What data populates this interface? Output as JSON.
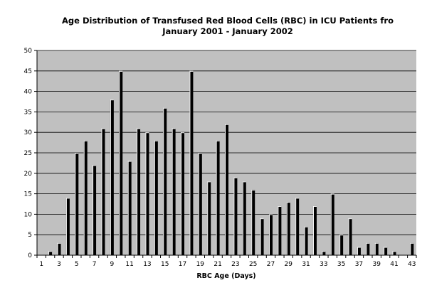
{
  "chart_data": {
    "type": "bar",
    "title_line1": "Age Distribution of Transfused Red Blood Cells (RBC) in ICU Patients fro",
    "title_line2": "January 2001 - January 2002",
    "xlabel": "RBC Age (Days)",
    "ylabel": "",
    "ylim": [
      0,
      50
    ],
    "y_ticks": [
      0,
      5,
      10,
      15,
      20,
      25,
      30,
      35,
      40,
      45,
      50
    ],
    "x_tick_labels": [
      1,
      3,
      5,
      7,
      9,
      11,
      13,
      15,
      17,
      19,
      21,
      23,
      25,
      27,
      29,
      31,
      33,
      35,
      37,
      39,
      41,
      43
    ],
    "categories": [
      1,
      2,
      3,
      4,
      5,
      6,
      7,
      8,
      9,
      10,
      11,
      12,
      13,
      14,
      15,
      16,
      17,
      18,
      19,
      20,
      21,
      22,
      23,
      24,
      25,
      26,
      27,
      28,
      29,
      30,
      31,
      32,
      33,
      34,
      35,
      36,
      37,
      38,
      39,
      40,
      41,
      42,
      43
    ],
    "values": [
      0,
      1,
      3,
      14,
      25,
      28,
      22,
      31,
      38,
      45,
      23,
      31,
      30,
      28,
      36,
      31,
      30,
      45,
      25,
      18,
      28,
      32,
      19,
      18,
      16,
      9,
      10,
      12,
      13,
      14,
      7,
      12,
      1,
      15,
      5,
      9,
      2,
      3,
      3,
      2,
      1,
      0,
      3
    ],
    "grid": true,
    "plot_background": "#c0c0c0",
    "bar_color": "#000000",
    "bar_highlight": "#ffffff"
  }
}
